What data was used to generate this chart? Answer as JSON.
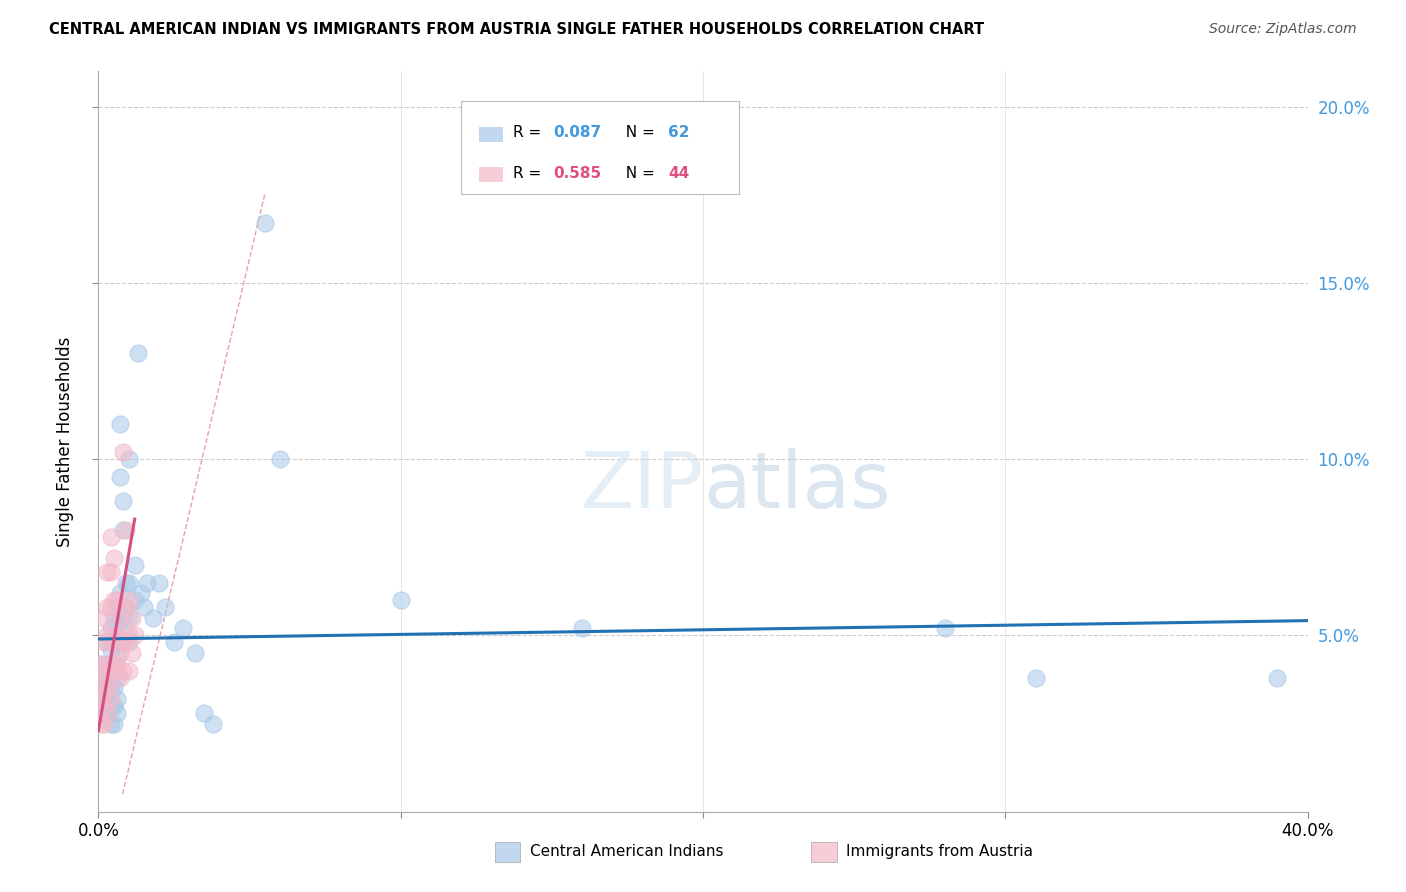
{
  "title": "CENTRAL AMERICAN INDIAN VS IMMIGRANTS FROM AUSTRIA SINGLE FATHER HOUSEHOLDS CORRELATION CHART",
  "source": "Source: ZipAtlas.com",
  "ylabel": "Single Father Households",
  "xmin": 0.0,
  "xmax": 0.4,
  "ymin": 0.0,
  "ymax": 0.21,
  "blue_color": "#a8c8e8",
  "pink_color": "#f4b8c8",
  "blue_fill": "#a8c8e8",
  "pink_fill": "#f4b8c8",
  "blue_line_color": "#2171b5",
  "pink_line_color": "#d45080",
  "dash_color": "#e8a0b0",
  "r_blue_color": "#4499dd",
  "r_pink_color": "#e05080",
  "n_color": "#333333",
  "blue_scatter": [
    [
      0.001,
      0.042
    ],
    [
      0.001,
      0.038
    ],
    [
      0.002,
      0.035
    ],
    [
      0.002,
      0.03
    ],
    [
      0.002,
      0.028
    ],
    [
      0.003,
      0.048
    ],
    [
      0.003,
      0.042
    ],
    [
      0.003,
      0.038
    ],
    [
      0.003,
      0.033
    ],
    [
      0.003,
      0.028
    ],
    [
      0.004,
      0.052
    ],
    [
      0.004,
      0.046
    ],
    [
      0.004,
      0.04
    ],
    [
      0.004,
      0.035
    ],
    [
      0.004,
      0.03
    ],
    [
      0.004,
      0.025
    ],
    [
      0.005,
      0.055
    ],
    [
      0.005,
      0.048
    ],
    [
      0.005,
      0.042
    ],
    [
      0.005,
      0.035
    ],
    [
      0.005,
      0.03
    ],
    [
      0.005,
      0.025
    ],
    [
      0.006,
      0.058
    ],
    [
      0.006,
      0.05
    ],
    [
      0.006,
      0.044
    ],
    [
      0.006,
      0.038
    ],
    [
      0.006,
      0.032
    ],
    [
      0.006,
      0.028
    ],
    [
      0.007,
      0.11
    ],
    [
      0.007,
      0.095
    ],
    [
      0.007,
      0.062
    ],
    [
      0.007,
      0.055
    ],
    [
      0.007,
      0.048
    ],
    [
      0.008,
      0.088
    ],
    [
      0.008,
      0.08
    ],
    [
      0.008,
      0.055
    ],
    [
      0.009,
      0.065
    ],
    [
      0.009,
      0.058
    ],
    [
      0.009,
      0.05
    ],
    [
      0.01,
      0.1
    ],
    [
      0.01,
      0.065
    ],
    [
      0.01,
      0.055
    ],
    [
      0.01,
      0.048
    ],
    [
      0.012,
      0.07
    ],
    [
      0.012,
      0.06
    ],
    [
      0.013,
      0.13
    ],
    [
      0.014,
      0.062
    ],
    [
      0.015,
      0.058
    ],
    [
      0.016,
      0.065
    ],
    [
      0.018,
      0.055
    ],
    [
      0.02,
      0.065
    ],
    [
      0.022,
      0.058
    ],
    [
      0.025,
      0.048
    ],
    [
      0.028,
      0.052
    ],
    [
      0.032,
      0.045
    ],
    [
      0.035,
      0.028
    ],
    [
      0.038,
      0.025
    ],
    [
      0.06,
      0.1
    ],
    [
      0.055,
      0.167
    ],
    [
      0.1,
      0.06
    ],
    [
      0.16,
      0.052
    ],
    [
      0.28,
      0.052
    ],
    [
      0.31,
      0.038
    ],
    [
      0.39,
      0.038
    ]
  ],
  "pink_scatter": [
    [
      0.001,
      0.042
    ],
    [
      0.001,
      0.038
    ],
    [
      0.001,
      0.032
    ],
    [
      0.001,
      0.025
    ],
    [
      0.002,
      0.055
    ],
    [
      0.002,
      0.048
    ],
    [
      0.002,
      0.04
    ],
    [
      0.002,
      0.035
    ],
    [
      0.002,
      0.03
    ],
    [
      0.002,
      0.025
    ],
    [
      0.003,
      0.068
    ],
    [
      0.003,
      0.058
    ],
    [
      0.003,
      0.05
    ],
    [
      0.003,
      0.042
    ],
    [
      0.003,
      0.035
    ],
    [
      0.003,
      0.028
    ],
    [
      0.004,
      0.078
    ],
    [
      0.004,
      0.068
    ],
    [
      0.004,
      0.058
    ],
    [
      0.004,
      0.048
    ],
    [
      0.004,
      0.04
    ],
    [
      0.004,
      0.032
    ],
    [
      0.005,
      0.072
    ],
    [
      0.005,
      0.06
    ],
    [
      0.005,
      0.05
    ],
    [
      0.005,
      0.04
    ],
    [
      0.006,
      0.06
    ],
    [
      0.006,
      0.05
    ],
    [
      0.006,
      0.042
    ],
    [
      0.007,
      0.055
    ],
    [
      0.007,
      0.045
    ],
    [
      0.007,
      0.038
    ],
    [
      0.008,
      0.102
    ],
    [
      0.008,
      0.048
    ],
    [
      0.008,
      0.04
    ],
    [
      0.009,
      0.08
    ],
    [
      0.009,
      0.058
    ],
    [
      0.009,
      0.048
    ],
    [
      0.01,
      0.06
    ],
    [
      0.01,
      0.05
    ],
    [
      0.01,
      0.04
    ],
    [
      0.011,
      0.055
    ],
    [
      0.011,
      0.045
    ],
    [
      0.012,
      0.05
    ]
  ],
  "blue_trend_x": [
    0.0,
    0.4
  ],
  "blue_trend_y": [
    0.049,
    0.0542
  ],
  "pink_trend_x": [
    0.0,
    0.012
  ],
  "pink_trend_y": [
    0.023,
    0.083
  ],
  "dash_line_x": [
    0.008,
    0.055
  ],
  "dash_line_y": [
    0.005,
    0.175
  ]
}
